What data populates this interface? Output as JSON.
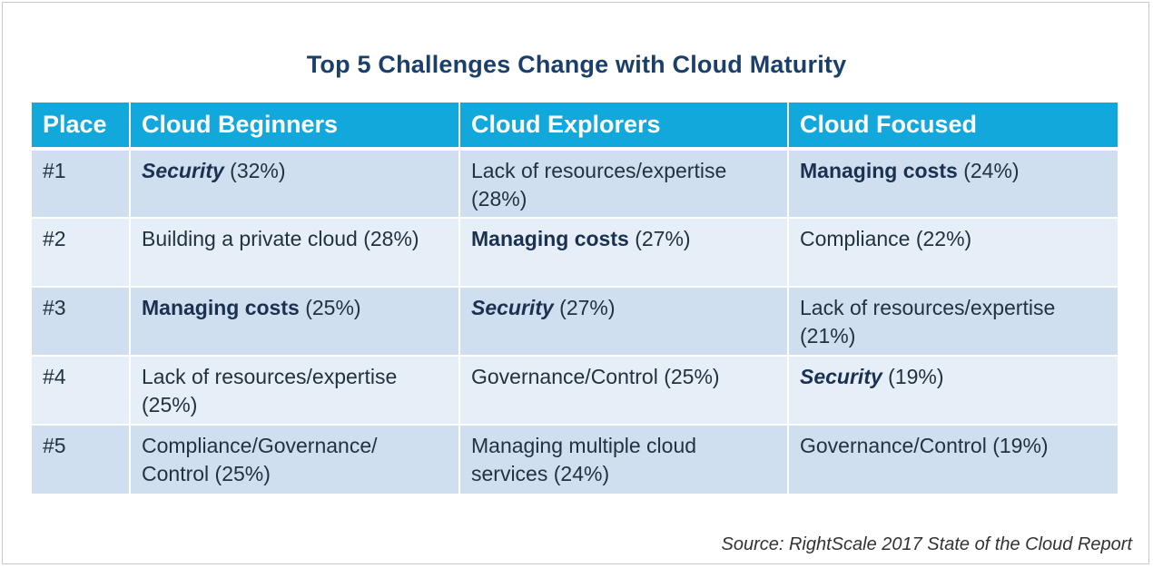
{
  "title": "Top 5 Challenges Change with Cloud Maturity",
  "headers": [
    "Place",
    "Cloud Beginners",
    "Cloud Explorers",
    "Cloud Focused"
  ],
  "rows": [
    {
      "place": "#1",
      "cells": [
        {
          "label": "Security",
          "pct": " (32%)",
          "style": "bold-italic"
        },
        {
          "label": "Lack of resources/expertise",
          "pct": " (28%)",
          "style": "normal"
        },
        {
          "label": "Managing costs",
          "pct": " (24%)",
          "style": "bold"
        }
      ]
    },
    {
      "place": "#2",
      "cells": [
        {
          "label": "Building a private cloud",
          "pct": " (28%)",
          "style": "normal"
        },
        {
          "label": "Managing costs",
          "pct": " (27%)",
          "style": "bold"
        },
        {
          "label": "Compliance",
          "pct": " (22%)",
          "style": "normal"
        }
      ]
    },
    {
      "place": "#3",
      "cells": [
        {
          "label": "Managing costs",
          "pct": " (25%)",
          "style": "bold"
        },
        {
          "label": "Security",
          "pct": " (27%)",
          "style": "bold-italic"
        },
        {
          "label": "Lack of resources/expertise",
          "pct": " (21%)",
          "style": "normal"
        }
      ]
    },
    {
      "place": "#4",
      "cells": [
        {
          "label": "Lack of resources/expertise",
          "pct": " (25%)",
          "style": "normal"
        },
        {
          "label": "Governance/Control",
          "pct": " (25%)",
          "style": "normal"
        },
        {
          "label": "Security",
          "pct": " (19%)",
          "style": "bold-italic"
        }
      ]
    },
    {
      "place": "#5",
      "cells": [
        {
          "label": "Compliance/Governance/ Control",
          "pct": " (25%)",
          "style": "normal"
        },
        {
          "label": "Managing multiple cloud services",
          "pct": " (24%)",
          "style": "normal"
        },
        {
          "label": "Governance/Control",
          "pct": " (19%)",
          "style": "normal"
        }
      ]
    }
  ],
  "source": "Source: RightScale 2017 State of the Cloud Report",
  "colors": {
    "title": "#1b3f6b",
    "header_bg": "#12a8dc",
    "row_odd_bg": "#cfdff0",
    "row_even_bg": "#e6eef8"
  }
}
